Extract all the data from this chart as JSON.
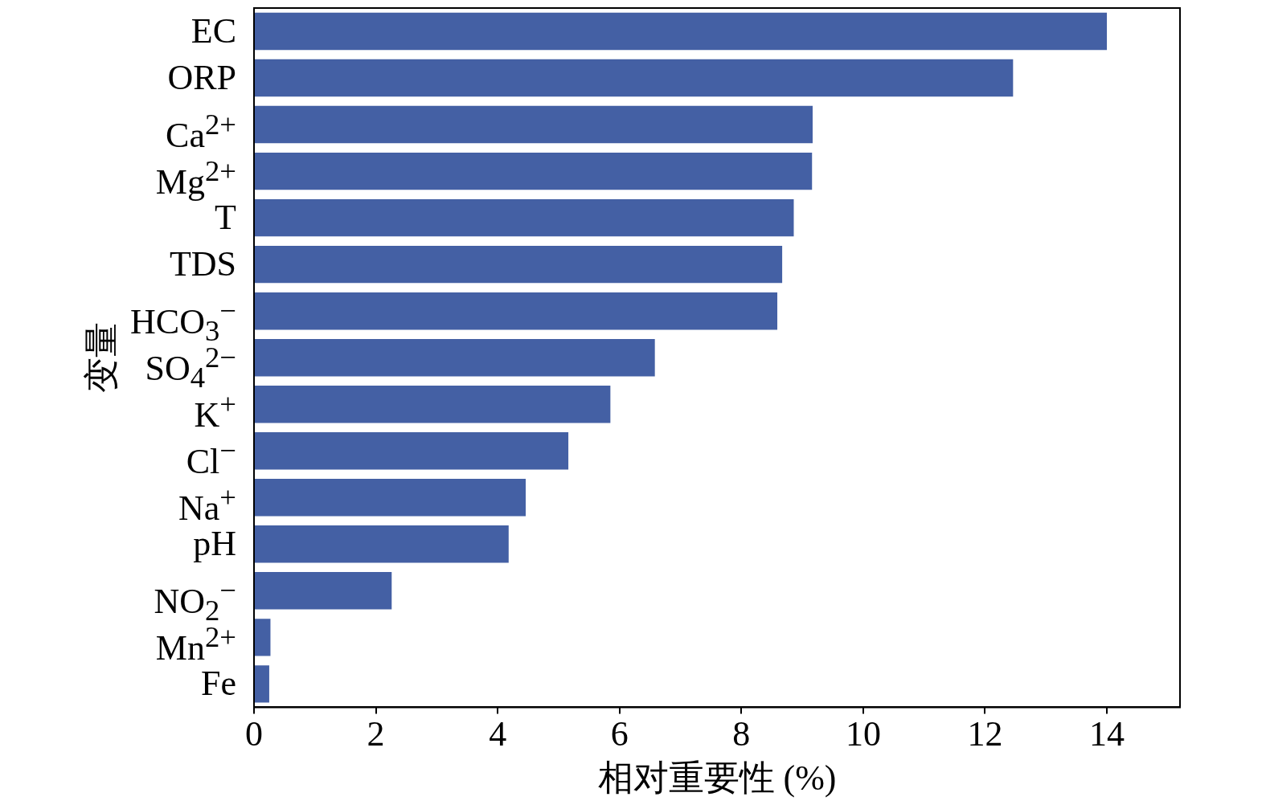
{
  "chart_data": {
    "type": "bar",
    "orientation": "horizontal",
    "xlabel": "相对重要性 (%)",
    "ylabel": "变量",
    "categories": [
      "EC",
      "ORP",
      "Ca$^{2+}$",
      "Mg$^{2+}$",
      "T",
      "TDS",
      "HCO$_{3}$$^{−}$",
      "SO$_{4}$$^{2−}$",
      "K$^{+}$",
      "Cl$^{−}$",
      "Na$^{+}$",
      "pH",
      "NO$_{2}$$^{−}$",
      "Mn$^{2+}$",
      "Fe"
    ],
    "values": [
      14.0,
      12.46,
      9.17,
      9.16,
      8.86,
      8.67,
      8.59,
      6.58,
      5.85,
      5.16,
      4.46,
      4.18,
      2.26,
      0.27,
      0.25
    ],
    "color": "#4460a4",
    "xlim": [
      0,
      15.2
    ],
    "xticks": [
      0,
      2,
      4,
      6,
      8,
      10,
      12,
      14
    ],
    "grid": false
  }
}
